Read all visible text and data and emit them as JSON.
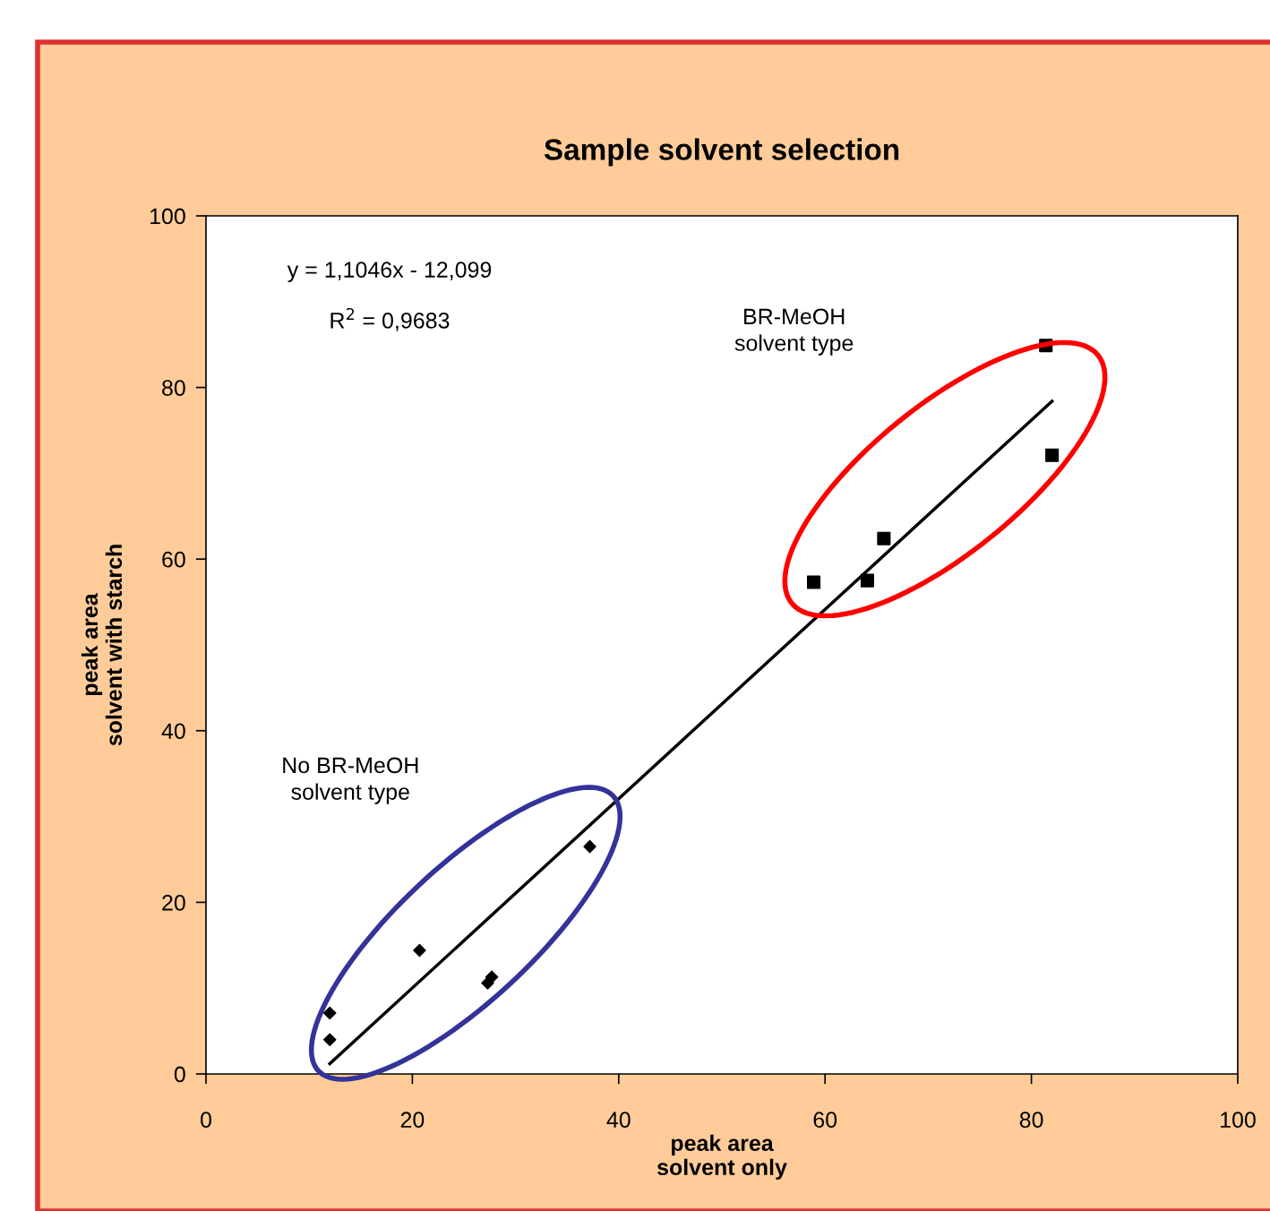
{
  "chart_data": {
    "type": "scatter",
    "title": "Sample solvent selection",
    "xlabel": "peak area\nsolvent only",
    "ylabel": "peak area\nsolvent with starch",
    "xlim": [
      0,
      100
    ],
    "ylim": [
      0,
      100
    ],
    "xticks": [
      0,
      20,
      40,
      60,
      80,
      100
    ],
    "yticks": [
      0,
      20,
      40,
      60,
      80,
      100
    ],
    "grid": false,
    "legend": false,
    "series": [
      {
        "type": "scatter",
        "marker": "diamond",
        "color": "#000000",
        "x": [
          12.0,
          12.0,
          20.7,
          27.3,
          27.7,
          37.2
        ],
        "values": [
          7.1,
          4.0,
          14.4,
          10.6,
          11.3,
          26.5
        ]
      },
      {
        "type": "scatter",
        "marker": "square",
        "color": "#000000",
        "x": [
          58.9,
          64.1,
          65.7,
          81.4,
          82.0
        ],
        "values": [
          57.3,
          57.5,
          62.4,
          84.9,
          72.1
        ]
      },
      {
        "type": "line",
        "color": "#000000",
        "x": [
          12,
          82
        ],
        "values": [
          1.2,
          78.4
        ]
      }
    ],
    "annotations": [
      "y = 1,1046x - 12,099",
      "R$^{2}$ = 0,9683",
      "BR-MeOH\nsolvent type",
      "No BR-MeOH\nsolvent type"
    ]
  }
}
